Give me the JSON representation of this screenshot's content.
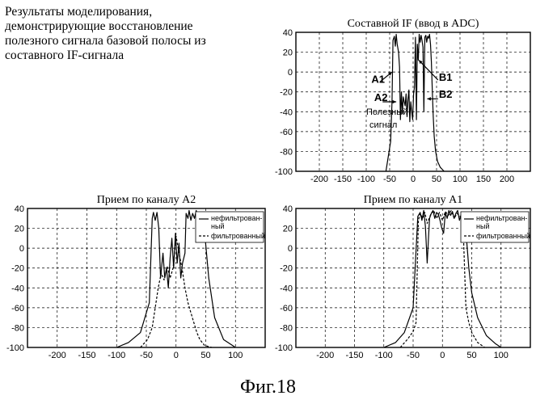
{
  "caption": [
    "Результаты моделирования,",
    "демонстрирующие восстановление",
    "полезного сигнала базовой полосы из",
    "составного IF-сигнала"
  ],
  "figure_label": "Фиг.18",
  "chart_data": [
    {
      "type": "line",
      "title": "Составной IF (ввод в ADC)",
      "xlim": [
        -250,
        250
      ],
      "ylim": [
        -100,
        40
      ],
      "xticks": [
        -200,
        -150,
        -100,
        -50,
        0,
        50,
        100,
        150,
        200
      ],
      "yticks": [
        40,
        20,
        0,
        -20,
        -40,
        -60,
        -80,
        -100
      ],
      "grid": true,
      "annotations": [
        "A1",
        "A2",
        "B1",
        "B2",
        "Полезный",
        "сигнал"
      ],
      "series": [
        {
          "x": [
            -58,
            -48,
            -45,
            -43,
            -40,
            -38,
            -36,
            -34,
            -31,
            -29,
            -27,
            -25,
            -23,
            -21,
            -19,
            -17,
            -15,
            -13,
            -11,
            -9,
            -7,
            -5,
            -3,
            -1,
            1,
            3,
            5,
            7,
            9,
            11,
            13,
            15,
            17,
            19,
            21,
            23,
            25,
            27,
            29,
            31,
            33,
            35,
            37,
            39,
            41,
            43,
            45,
            48,
            52,
            58,
            66
          ],
          "y": [
            -100,
            -70,
            -30,
            32,
            36,
            26,
            38,
            28,
            20,
            5,
            -48,
            -20,
            -42,
            -25,
            -30,
            -34,
            -22,
            -45,
            -28,
            -18,
            -50,
            -30,
            -40,
            -48,
            -22,
            -15,
            35,
            -48,
            28,
            12,
            38,
            30,
            37,
            32,
            25,
            -40,
            35,
            37,
            30,
            36,
            34,
            38,
            28,
            10,
            -20,
            -45,
            -65,
            -80,
            -90,
            -96,
            -100
          ]
        }
      ]
    },
    {
      "type": "line",
      "title": "Прием по каналу А2",
      "xlim": [
        -250,
        150
      ],
      "ylim": [
        -100,
        40
      ],
      "xticks": [
        -200,
        -150,
        -100,
        -50,
        0,
        50,
        100
      ],
      "yticks": [
        40,
        20,
        0,
        -20,
        -40,
        -60,
        -80,
        -100
      ],
      "grid": true,
      "legend": {
        "placement": "top-right",
        "entries": [
          "нефильтрован-ный",
          "фильтрованный"
        ]
      },
      "series": [
        {
          "name": "нефильтрован-ный",
          "x": [
            -100,
            -80,
            -60,
            -45,
            -40,
            -38,
            -35,
            -32,
            -29,
            -26,
            -22,
            -19,
            -16,
            -13,
            -10,
            -7,
            -4,
            -1,
            2,
            5,
            8,
            11,
            15,
            17,
            20,
            22,
            25,
            28,
            31,
            34,
            37,
            40,
            43,
            46,
            49,
            55,
            65,
            80,
            100
          ],
          "y": [
            -100,
            -95,
            -85,
            -55,
            30,
            36,
            28,
            36,
            20,
            -30,
            -5,
            -30,
            -20,
            -40,
            -10,
            10,
            -20,
            15,
            -15,
            5,
            -30,
            -15,
            -5,
            35,
            30,
            38,
            28,
            35,
            30,
            38,
            32,
            28,
            35,
            30,
            10,
            -30,
            -70,
            -92,
            -100
          ]
        },
        {
          "name": "фильтрованный",
          "x": [
            -60,
            -48,
            -40,
            -35,
            -30,
            -25,
            -20,
            -15,
            -10,
            -5,
            0,
            5,
            10,
            15,
            20,
            25,
            30,
            35,
            40,
            48,
            60
          ],
          "y": [
            -100,
            -92,
            -80,
            -60,
            -40,
            -25,
            -32,
            -18,
            -30,
            -20,
            12,
            -5,
            -20,
            -40,
            -55,
            -65,
            -75,
            -85,
            -92,
            -98,
            -100
          ]
        }
      ]
    },
    {
      "type": "line",
      "title": "Прием по каналу А1",
      "xlim": [
        -250,
        150
      ],
      "ylim": [
        -100,
        40
      ],
      "xticks": [
        -200,
        -150,
        -100,
        -50,
        0,
        50,
        100
      ],
      "yticks": [
        40,
        20,
        0,
        -20,
        -40,
        -60,
        -80,
        -100
      ],
      "grid": true,
      "legend": {
        "placement": "top-right",
        "entries": [
          "нефильтрован-ный",
          "фильтрованный"
        ]
      },
      "series": [
        {
          "name": "нефильтрован-ный",
          "x": [
            -100,
            -80,
            -65,
            -50,
            -42,
            -38,
            -35,
            -32,
            -29,
            -26,
            -22,
            -19,
            -16,
            -13,
            -10,
            -7,
            -4,
            -1,
            2,
            5,
            8,
            11,
            14,
            17,
            20,
            23,
            26,
            29,
            32,
            35,
            38,
            41,
            45,
            50,
            60,
            75,
            90,
            100
          ],
          "y": [
            -100,
            -95,
            -85,
            -60,
            32,
            36,
            28,
            38,
            22,
            -15,
            30,
            35,
            38,
            30,
            36,
            34,
            28,
            20,
            15,
            36,
            30,
            38,
            33,
            37,
            30,
            35,
            38,
            28,
            34,
            30,
            25,
            10,
            -20,
            -45,
            -70,
            -88,
            -96,
            -100
          ]
        },
        {
          "name": "фильтрованный",
          "x": [
            -72,
            -60,
            -50,
            -45,
            -41,
            -38,
            -34,
            -30,
            -26,
            -20,
            -15,
            -10,
            -5,
            0,
            5,
            10,
            15,
            20,
            25,
            30,
            35,
            40,
            45,
            50,
            60,
            72
          ],
          "y": [
            -100,
            -92,
            -84,
            -75,
            28,
            35,
            30,
            36,
            25,
            34,
            38,
            30,
            36,
            28,
            37,
            33,
            38,
            30,
            35,
            32,
            28,
            -60,
            -75,
            -85,
            -95,
            -100
          ]
        }
      ]
    }
  ]
}
